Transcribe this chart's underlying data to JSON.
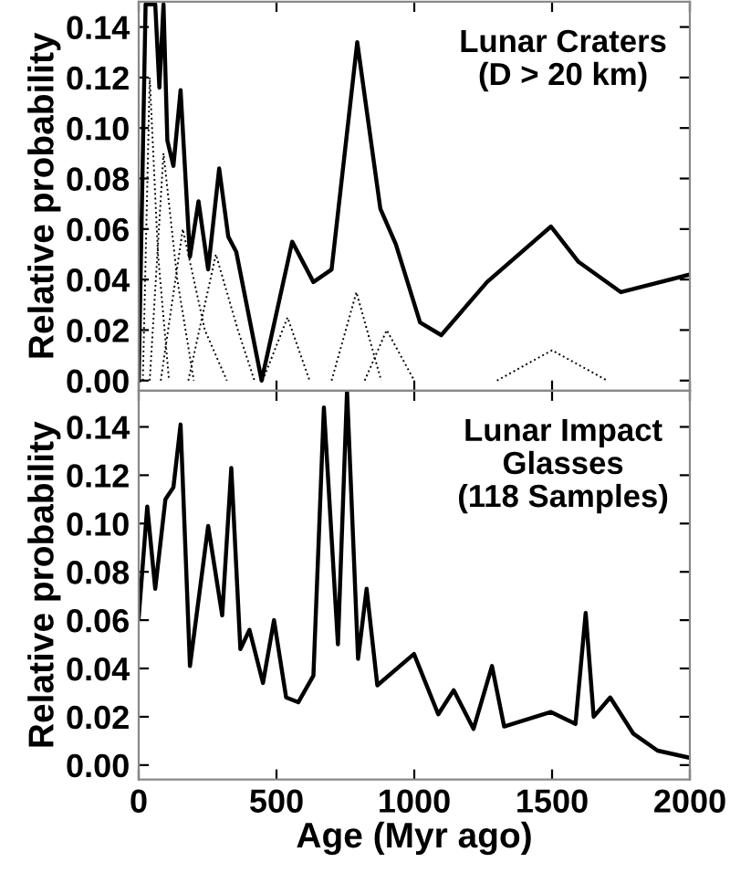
{
  "chart_data": [
    {
      "type": "line",
      "annotations": [
        "Lunar Craters\n(D > 20 km)"
      ],
      "ylabel": "Relative probability",
      "tick_labels": "y",
      "grid": false,
      "marker": "none",
      "xlim": [
        0,
        2000
      ],
      "xticks": [
        0,
        500,
        1000,
        1500,
        2000
      ],
      "ylim": [
        -0.004,
        0.15
      ],
      "yticks": [
        {
          "value": 0,
          "label": "0.00"
        },
        {
          "value": 0.02,
          "label": "0.02"
        },
        {
          "value": 0.04,
          "label": "0.04"
        },
        {
          "value": 0.06,
          "label": "0.06"
        },
        {
          "value": 0.08,
          "label": "0.08"
        },
        {
          "value": 0.1,
          "label": "0.10"
        },
        {
          "value": 0.12,
          "label": "0.12"
        },
        {
          "value": 0.14,
          "label": "0.14"
        }
      ],
      "series": [
        {
          "color": "#000000",
          "line_style": "solid",
          "x": [
            0,
            25,
            38,
            60,
            75,
            90,
            104,
            126,
            152,
            186,
            217,
            252,
            292,
            325,
            354,
            446,
            557,
            634,
            700,
            793,
            877,
            933,
            1021,
            1098,
            1264,
            1496,
            1596,
            1750,
            2000
          ],
          "values": [
            0,
            0.149,
            0.149,
            0.149,
            0.116,
            0.149,
            0.095,
            0.085,
            0.115,
            0.049,
            0.071,
            0.044,
            0.084,
            0.057,
            0.051,
            0.0,
            0.055,
            0.039,
            0.044,
            0.134,
            0.068,
            0.054,
            0.023,
            0.018,
            0.039,
            0.061,
            0.047,
            0.035,
            0.042
          ]
        },
        {
          "color": "#000000",
          "line_style": "dotted",
          "x": [
            15,
            40,
            70,
            110
          ],
          "values": [
            0,
            0.12,
            0.05,
            0
          ]
        },
        {
          "color": "#000000",
          "line_style": "dotted",
          "x": [
            40,
            90,
            140,
            200
          ],
          "values": [
            0,
            0.09,
            0.04,
            0
          ]
        },
        {
          "color": "#000000",
          "line_style": "dotted",
          "x": [
            80,
            160,
            240,
            320
          ],
          "values": [
            0,
            0.06,
            0.02,
            0
          ]
        },
        {
          "color": "#000000",
          "line_style": "dotted",
          "x": [
            180,
            280,
            360,
            420
          ],
          "values": [
            0,
            0.05,
            0.02,
            0
          ]
        },
        {
          "color": "#000000",
          "line_style": "dotted",
          "x": [
            450,
            540,
            620
          ],
          "values": [
            0,
            0.025,
            0
          ]
        },
        {
          "color": "#000000",
          "line_style": "dotted",
          "x": [
            700,
            790,
            880
          ],
          "values": [
            0,
            0.035,
            0
          ]
        },
        {
          "color": "#000000",
          "line_style": "dotted",
          "x": [
            820,
            900,
            1000
          ],
          "values": [
            0,
            0.02,
            0
          ]
        },
        {
          "color": "#000000",
          "line_style": "dotted",
          "x": [
            1300,
            1500,
            1700
          ],
          "values": [
            0,
            0.012,
            0
          ]
        }
      ]
    },
    {
      "type": "line",
      "annotations": [
        "Lunar Impact\nGlasses\n(118 Samples)"
      ],
      "ylabel": "Relative probability",
      "xlabel": "Age (Myr ago)",
      "grid": false,
      "marker": "none",
      "xlim": [
        0,
        2000
      ],
      "xticks": [
        0,
        500,
        1000,
        1500,
        2000
      ],
      "ylim": [
        -0.006,
        0.155
      ],
      "yticks": [
        {
          "value": 0,
          "label": "0.00"
        },
        {
          "value": 0.02,
          "label": "0.02"
        },
        {
          "value": 0.04,
          "label": "0.04"
        },
        {
          "value": 0.06,
          "label": "0.06"
        },
        {
          "value": 0.08,
          "label": "0.08"
        },
        {
          "value": 0.1,
          "label": "0.10"
        },
        {
          "value": 0.12,
          "label": "0.12"
        },
        {
          "value": 0.14,
          "label": "0.14"
        }
      ],
      "series": [
        {
          "color": "#000000",
          "line_style": "solid",
          "x": [
            0,
            31,
            60,
            97,
            126,
            152,
            186,
            252,
            303,
            336,
            369,
            402,
            451,
            491,
            535,
            579,
            634,
            672,
            723,
            756,
            796,
            827,
            866,
            999,
            1087,
            1143,
            1215,
            1282,
            1326,
            1496,
            1585,
            1622,
            1651,
            1711,
            1795,
            1883,
            2000
          ],
          "values": [
            0.061,
            0.107,
            0.073,
            0.11,
            0.115,
            0.141,
            0.041,
            0.099,
            0.062,
            0.123,
            0.048,
            0.056,
            0.034,
            0.06,
            0.028,
            0.026,
            0.037,
            0.148,
            0.05,
            0.155,
            0.044,
            0.073,
            0.033,
            0.046,
            0.021,
            0.031,
            0.015,
            0.041,
            0.016,
            0.022,
            0.017,
            0.063,
            0.02,
            0.028,
            0.013,
            0.006,
            0.003
          ]
        }
      ]
    }
  ]
}
